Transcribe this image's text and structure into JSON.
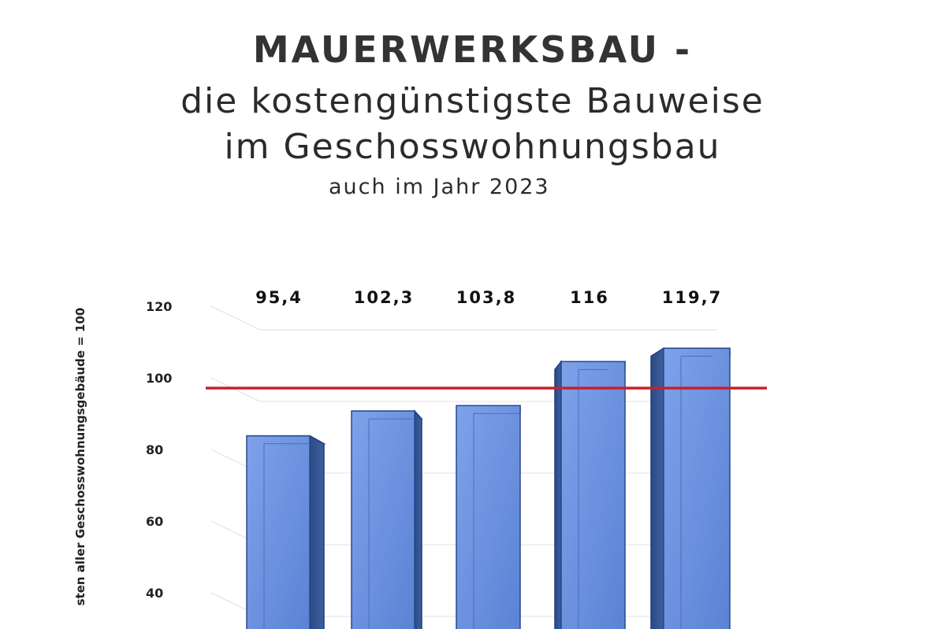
{
  "header": {
    "title": "MAUERWERKSBAU -",
    "subtitle_line1": "die kostengünstigste Bauweise",
    "subtitle_line2": "im Geschosswohnungsbau",
    "note": "auch im Jahr 2023"
  },
  "chart_data": {
    "type": "bar",
    "title": "MAUERWERKSBAU - die kostengünstigste Bauweise im Geschosswohnungsbau",
    "subtitle": "auch im Jahr 2023",
    "ylabel": "sten aller Geschosswohnungsgebäude = 100",
    "xlabel": "",
    "categories": [
      "",
      "",
      "",
      "",
      ""
    ],
    "values": [
      95.4,
      102.3,
      103.8,
      116,
      119.7
    ],
    "value_labels": [
      "95,4",
      "102,3",
      "103,8",
      "116",
      "119,7"
    ],
    "yticks": [
      "40",
      "60",
      "80",
      "100",
      "120"
    ],
    "ytick_values": [
      40,
      60,
      80,
      100,
      120
    ],
    "ylim": [
      40,
      120
    ],
    "reference_line": {
      "value": 100,
      "color": "#c8202a"
    },
    "bar_color": "#5b84d6",
    "bar_edge_color": "#1f3f7a",
    "grid": true,
    "legend": "none"
  }
}
